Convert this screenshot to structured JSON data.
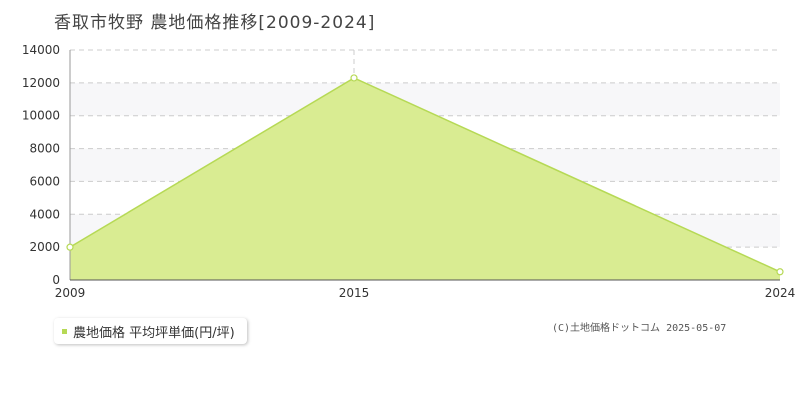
{
  "chart_data": {
    "type": "area",
    "title": "香取市牧野 農地価格推移[2009-2024]",
    "x": [
      2009,
      2015,
      2024
    ],
    "xticks": [
      "2009",
      "2015",
      "2024"
    ],
    "series": [
      {
        "name": "農地価格 平均坪単価(円/坪)",
        "values": [
          2000,
          12300,
          500
        ]
      }
    ],
    "yticks": [
      "0",
      "2000",
      "4000",
      "6000",
      "8000",
      "10000",
      "12000",
      "14000"
    ],
    "ylim": [
      0,
      14000
    ],
    "xlim": [
      2009,
      2024
    ],
    "grid": true,
    "legend_position": "bottom-left",
    "colors": {
      "fill": "#d9ec92",
      "line": "#b6d955",
      "band": "#f7f7f9",
      "grid": "#cccccc"
    }
  },
  "legend": {
    "label": "農地価格 平均坪単価(円/坪)"
  },
  "credit": "(C)土地価格ドットコム 2025-05-07"
}
